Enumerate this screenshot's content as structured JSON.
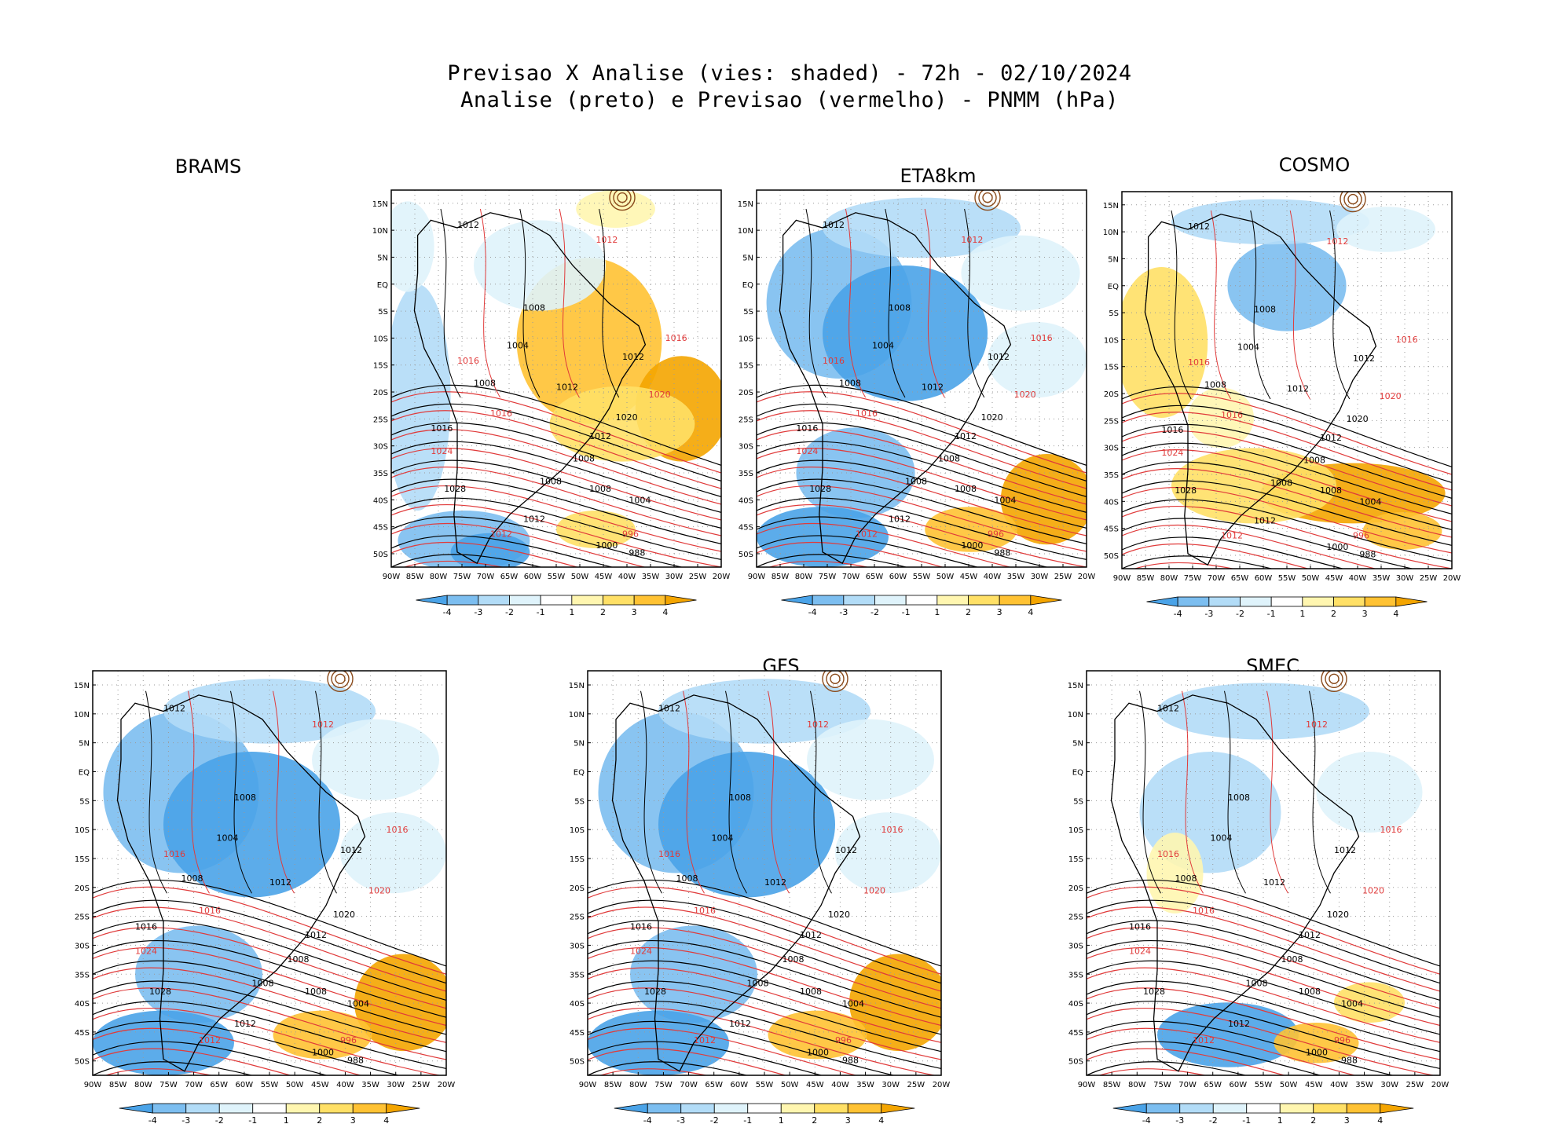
{
  "title_line1": "Previsao X Analise (vies: shaded) - 72h - 02/10/2024",
  "title_line2": "Analise (preto) e Previsao (vermelho) - PNMM (hPa)",
  "colorbar_labels": [
    "-4",
    "-3",
    "-2",
    "-1",
    "1",
    "2",
    "3",
    "4"
  ],
  "colorbar_colors": [
    "#4aa3e8",
    "#7cbef0",
    "#b2dcf7",
    "#dff3fb",
    "#ffffff",
    "#fff6b0",
    "#ffe066",
    "#ffc233",
    "#f4a500"
  ],
  "lat_labels": [
    "15N",
    "10N",
    "5N",
    "EQ",
    "5S",
    "10S",
    "15S",
    "20S",
    "25S",
    "30S",
    "35S",
    "40S",
    "45S",
    "50S"
  ],
  "lon_labels": [
    "90W",
    "85W",
    "80W",
    "75W",
    "70W",
    "65W",
    "60W",
    "55W",
    "50W",
    "45W",
    "40W",
    "35W",
    "30W",
    "25W",
    "20W"
  ],
  "colors": {
    "analysis_contour": "#000000",
    "forecast_contour": "#e03a3a"
  },
  "panels": [
    {
      "id": "eta8km",
      "name": "ETA8km"
    },
    {
      "id": "cosmo",
      "name": "COSMO"
    },
    {
      "id": "brams",
      "name": "BRAMS"
    },
    {
      "id": "gfs",
      "name": "GFS"
    },
    {
      "id": "smec",
      "name": "SMEC"
    }
  ],
  "contour_values": [
    "1012",
    "1012",
    "1012",
    "1008",
    "1016",
    "1012",
    "1004",
    "1016",
    "1008",
    "1020",
    "1020",
    "1012",
    "1008",
    "1016",
    "1008",
    "1012",
    "1024",
    "1028",
    "1016",
    "1012",
    "1004",
    "1008",
    "996",
    "988",
    "1000"
  ]
}
